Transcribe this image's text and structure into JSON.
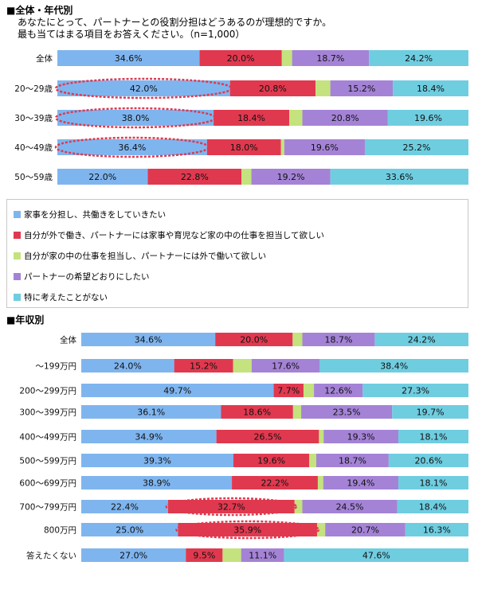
{
  "header": {
    "title": "■全体・年代別",
    "question_line1": "あなたにとって、パートナーとの役割分担はどうあるのが理想的ですか。",
    "question_line2": "最も当てはまる項目をお答えください。（n=1,000）"
  },
  "section2_title": "■年収別",
  "colors": [
    "#7fb5ef",
    "#e0394f",
    "#c4e27e",
    "#a483d6",
    "#6fcde0"
  ],
  "highlight_color": "#e0394f",
  "legend": [
    "家事を分担し、共働きをしていきたい",
    "自分が外で働き、パートナーには家事や育児など家の中の仕事を担当して欲しい",
    "自分が家の中の仕事を担当し、パートナーには外で働いて欲しい",
    "パートナーの希望どおりにしたい",
    "特に考えたことがない"
  ],
  "chart_data": [
    {
      "type": "bar",
      "orientation": "horizontal-stacked-100",
      "title": "■全体・年代別",
      "categories": [
        "全体",
        "20～29歳",
        "30～39歳",
        "40～49歳",
        "50～59歳"
      ],
      "series": [
        {
          "name": "家事を分担し、共働きをしていきたい",
          "values": [
            34.6,
            42.0,
            38.0,
            36.4,
            22.0
          ]
        },
        {
          "name": "自分が外で働き、パートナーには家事や育児など家の中の仕事を担当して欲しい",
          "values": [
            20.0,
            20.8,
            18.4,
            18.0,
            22.8
          ]
        },
        {
          "name": "自分が家の中の仕事を担当し、パートナーには外で働いて欲しい",
          "values": [
            2.5,
            3.6,
            3.2,
            0.8,
            2.4
          ]
        },
        {
          "name": "パートナーの希望どおりにしたい",
          "values": [
            18.7,
            15.2,
            20.8,
            19.6,
            19.2
          ]
        },
        {
          "name": "特に考えたことがない",
          "values": [
            24.2,
            18.4,
            19.6,
            25.2,
            33.6
          ]
        }
      ],
      "labels": [
        [
          "34.6%",
          "20.0%",
          "",
          "18.7%",
          "24.2%"
        ],
        [
          "42.0%",
          "20.8%",
          "",
          "15.2%",
          "18.4%"
        ],
        [
          "38.0%",
          "18.4%",
          "",
          "20.8%",
          "19.6%"
        ],
        [
          "36.4%",
          "18.0%",
          "",
          "19.6%",
          "25.2%"
        ],
        [
          "22.0%",
          "22.8%",
          "",
          "19.2%",
          "33.6%"
        ]
      ],
      "highlights": [
        {
          "row": 1,
          "segment": 0
        },
        {
          "row": 2,
          "segment": 0
        },
        {
          "row": 3,
          "segment": 0
        }
      ]
    },
    {
      "type": "bar",
      "orientation": "horizontal-stacked-100",
      "title": "■年収別",
      "categories": [
        "全体",
        "～199万円",
        "200～299万円",
        "300～399万円",
        "400～499万円",
        "500～599万円",
        "600～699万円",
        "700～799万円",
        "800万円",
        "答えたくない"
      ],
      "series": [
        {
          "name": "家事を分担し、共働きをしていきたい",
          "values": [
            34.6,
            24.0,
            49.7,
            36.1,
            34.9,
            39.3,
            38.9,
            22.4,
            25.0,
            27.0
          ]
        },
        {
          "name": "自分が外で働き、パートナーには家事や育児など家の中の仕事を担当して欲しい",
          "values": [
            20.0,
            15.2,
            7.7,
            18.6,
            26.5,
            19.6,
            22.2,
            32.7,
            35.9,
            9.5
          ]
        },
        {
          "name": "自分が家の中の仕事を担当し、パートナーには外で働いて欲しい",
          "values": [
            2.5,
            4.8,
            2.7,
            2.1,
            1.2,
            1.8,
            1.4,
            2.0,
            2.1,
            4.8
          ]
        },
        {
          "name": "パートナーの希望どおりにしたい",
          "values": [
            18.7,
            17.6,
            12.6,
            23.5,
            19.3,
            18.7,
            19.4,
            24.5,
            20.7,
            11.1
          ]
        },
        {
          "name": "特に考えたことがない",
          "values": [
            24.2,
            38.4,
            27.3,
            19.7,
            18.1,
            20.6,
            18.1,
            18.4,
            16.3,
            47.6
          ]
        }
      ],
      "labels": [
        [
          "34.6%",
          "20.0%",
          "",
          "18.7%",
          "24.2%"
        ],
        [
          "24.0%",
          "15.2%",
          "",
          "17.6%",
          "38.4%"
        ],
        [
          "49.7%",
          "7.7%",
          "",
          "12.6%",
          "27.3%"
        ],
        [
          "36.1%",
          "18.6%",
          "",
          "23.5%",
          "19.7%"
        ],
        [
          "34.9%",
          "26.5%",
          "",
          "19.3%",
          "18.1%"
        ],
        [
          "39.3%",
          "19.6%",
          "",
          "18.7%",
          "20.6%"
        ],
        [
          "38.9%",
          "22.2%",
          "",
          "19.4%",
          "18.1%"
        ],
        [
          "22.4%",
          "32.7%",
          "",
          "24.5%",
          "18.4%"
        ],
        [
          "25.0%",
          "35.9%",
          "",
          "20.7%",
          "16.3%"
        ],
        [
          "27.0%",
          "9.5%",
          "",
          "11.1%",
          "47.6%"
        ]
      ],
      "highlights": [
        {
          "row": 7,
          "segment": 1
        },
        {
          "row": 8,
          "segment": 1
        }
      ]
    }
  ]
}
